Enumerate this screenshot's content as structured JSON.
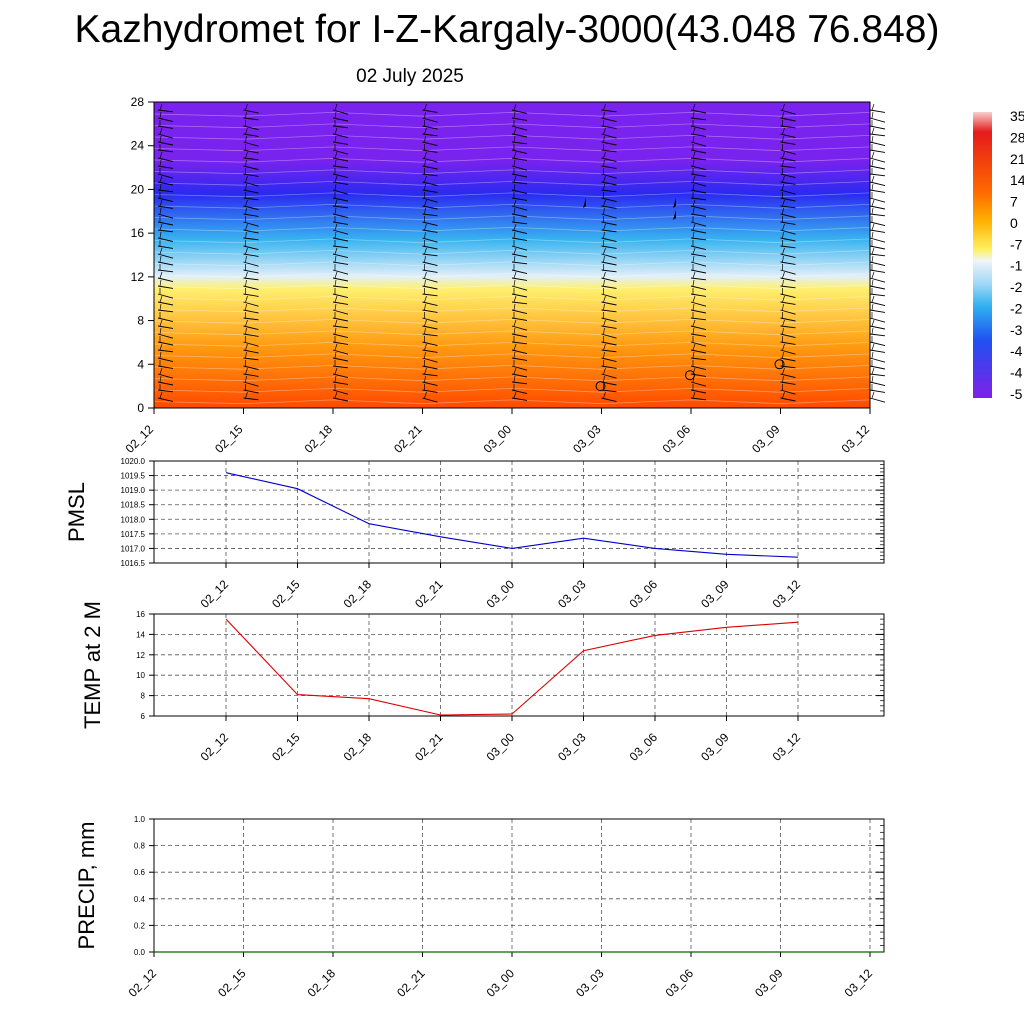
{
  "header": {
    "title": "Kazhydromet for I-Z-Kargaly-3000(43.048 76.848)",
    "date": "02 July 2025"
  },
  "chart_data": [
    {
      "type": "heatmap",
      "name": "cross-section",
      "x_labels": [
        "02_12",
        "02_15",
        "02_18",
        "02_21",
        "03_00",
        "03_03",
        "03_06",
        "03_09",
        "03_12"
      ],
      "y_ticks": [
        0,
        4,
        8,
        12,
        16,
        20,
        24,
        28
      ],
      "ylim": [
        0,
        28
      ],
      "colorbar_labels": [
        "35",
        "28",
        "21",
        "14",
        "7",
        "0",
        "-7",
        "-1",
        "-2",
        "-2",
        "-3",
        "-4",
        "-4",
        "-5"
      ],
      "colors": {
        "top": "#7a22ee",
        "upper_blue": "#2a2af0",
        "cyan": "#38b4f0",
        "light": "#e2eff8",
        "yellow": "#fff070",
        "orange": "#ff9a10",
        "bottom": "#ff4a00"
      }
    },
    {
      "type": "line",
      "name": "pmsl",
      "ylabel": "PMSL",
      "x": [
        "02_12",
        "02_15",
        "02_18",
        "02_21",
        "03_00",
        "03_03",
        "03_06",
        "03_09",
        "03_12"
      ],
      "values": [
        1019.6,
        1019.05,
        1017.85,
        1017.4,
        1017.0,
        1017.35,
        1017.0,
        1016.8,
        1016.7
      ],
      "ylim": [
        1016.5,
        1020.0
      ],
      "y_ticks": [
        "1016.5",
        "1017.0",
        "1017.5",
        "1018.0",
        "1018.5",
        "1019.0",
        "1019.5",
        "1020.0"
      ],
      "color": "#0000cc",
      "grid": true
    },
    {
      "type": "line",
      "name": "temp",
      "ylabel": "TEMP at 2 M",
      "x": [
        "02_12",
        "02_15",
        "02_18",
        "02_21",
        "03_00",
        "03_03",
        "03_06",
        "03_09",
        "03_12"
      ],
      "values": [
        15.5,
        8.1,
        7.7,
        6.1,
        6.2,
        12.4,
        13.9,
        14.7,
        15.2
      ],
      "ylim": [
        6,
        16
      ],
      "y_ticks": [
        "6",
        "8",
        "10",
        "12",
        "14",
        "16"
      ],
      "color": "#dd0000",
      "grid": true
    },
    {
      "type": "line",
      "name": "precip",
      "ylabel": "PRECIP, mm",
      "x": [
        "02_12",
        "02_15",
        "02_18",
        "02_21",
        "03_00",
        "03_03",
        "03_06",
        "03_09",
        "03_12"
      ],
      "values": [
        0,
        0,
        0,
        0,
        0,
        0,
        0,
        0,
        0
      ],
      "ylim": [
        0,
        1
      ],
      "y_ticks": [
        "0.0",
        "0.2",
        "0.4",
        "0.6",
        "0.8",
        "1.0"
      ],
      "color": "#006600",
      "grid": true
    }
  ]
}
